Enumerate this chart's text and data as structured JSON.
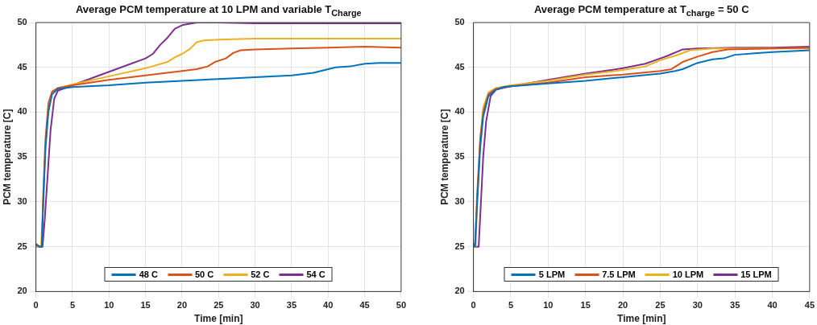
{
  "chart_data": [
    {
      "type": "line",
      "title": "Average PCM temperature at 10 LPM and variable T$_{Charge}$",
      "xlabel": "Time [min]",
      "ylabel": "PCM temperature [C]",
      "xlim": [
        0,
        50
      ],
      "xticks": [
        0,
        5,
        10,
        15,
        20,
        25,
        30,
        35,
        40,
        45,
        50
      ],
      "ylim": [
        20,
        50
      ],
      "yticks": [
        20,
        25,
        30,
        35,
        40,
        45,
        50
      ],
      "grid": true,
      "legend": "bottom",
      "series": [
        {
          "name": "48 C",
          "color": "#0072bd",
          "x": [
            0,
            0.5,
            0.8,
            1,
            1.3,
            1.7,
            2.2,
            3,
            5,
            10,
            15,
            20,
            25,
            30,
            35,
            38,
            40,
            41,
            43,
            45,
            47,
            50
          ],
          "values": [
            25.3,
            25,
            25,
            30,
            36,
            40,
            42,
            42.6,
            42.8,
            43,
            43.3,
            43.5,
            43.7,
            43.9,
            44.1,
            44.4,
            44.8,
            45,
            45.1,
            45.4,
            45.5,
            45.5
          ]
        },
        {
          "name": "50 C",
          "color": "#d95319",
          "x": [
            0,
            0.5,
            0.8,
            1,
            1.3,
            1.7,
            2.2,
            3,
            5,
            10,
            15,
            20,
            22,
            23.5,
            24.5,
            26,
            27,
            28,
            30,
            35,
            40,
            45,
            50
          ],
          "values": [
            25.2,
            25,
            25,
            31,
            37,
            41,
            42.3,
            42.7,
            43,
            43.6,
            44.1,
            44.6,
            44.8,
            45.1,
            45.6,
            46,
            46.6,
            46.9,
            47,
            47.1,
            47.2,
            47.3,
            47.2
          ]
        },
        {
          "name": "52 C",
          "color": "#edb120",
          "x": [
            0,
            0.7,
            1,
            1.3,
            1.7,
            2.2,
            3,
            5,
            10,
            15,
            18,
            19,
            20,
            21,
            22,
            23,
            25,
            30,
            40,
            50
          ],
          "values": [
            25,
            25,
            30,
            36,
            40.5,
            42.2,
            42.7,
            43.1,
            44,
            44.9,
            45.6,
            46.1,
            46.5,
            47,
            47.8,
            48,
            48.1,
            48.2,
            48.2,
            48.2
          ]
        },
        {
          "name": "54 C",
          "color": "#7e2f8e",
          "x": [
            0,
            0.9,
            1.2,
            1.6,
            2,
            2.5,
            3,
            5,
            10,
            13,
            15,
            16,
            17,
            18,
            19,
            20,
            22,
            25,
            30,
            40,
            50
          ],
          "values": [
            25,
            25,
            28,
            33,
            38,
            41.5,
            42.4,
            43,
            44.5,
            45.4,
            46,
            46.5,
            47.5,
            48.3,
            49.3,
            49.7,
            50,
            50,
            49.9,
            49.9,
            49.9
          ]
        }
      ]
    },
    {
      "type": "line",
      "title": "Average PCM temperature at T$_{charge}$ = 50 C",
      "xlabel": "Time [min]",
      "ylabel": "PCM temperature [C]",
      "xlim": [
        0,
        45
      ],
      "xticks": [
        0,
        5,
        10,
        15,
        20,
        25,
        30,
        35,
        40,
        45
      ],
      "ylim": [
        20,
        50
      ],
      "yticks": [
        20,
        25,
        30,
        35,
        40,
        45,
        50
      ],
      "grid": true,
      "legend": "bottom",
      "series": [
        {
          "name": "5 LPM",
          "color": "#0072bd",
          "x": [
            0,
            0.2,
            0.5,
            0.9,
            1.3,
            2,
            3,
            4,
            5,
            10,
            15,
            20,
            25,
            27,
            28,
            30,
            32,
            33.5,
            35,
            38,
            40,
            45
          ],
          "values": [
            25.3,
            25,
            30,
            36,
            39.5,
            41.8,
            42.5,
            42.8,
            42.9,
            43.2,
            43.5,
            43.9,
            44.3,
            44.6,
            44.8,
            45.5,
            45.9,
            46,
            46.4,
            46.6,
            46.7,
            46.9
          ]
        },
        {
          "name": "7.5 LPM",
          "color": "#d95319",
          "x": [
            0,
            0.2,
            0.5,
            0.9,
            1.3,
            2,
            3,
            5,
            10,
            15,
            20,
            25,
            26.5,
            28,
            30,
            32,
            34,
            40,
            45
          ],
          "values": [
            25.2,
            25,
            31,
            37,
            40,
            42,
            42.6,
            42.9,
            43.3,
            43.9,
            44.2,
            44.6,
            44.8,
            45.6,
            46.2,
            46.7,
            47,
            47.1,
            47.2
          ]
        },
        {
          "name": "10 LPM",
          "color": "#edb120",
          "x": [
            0,
            0.3,
            0.5,
            0.9,
            1.3,
            2,
            3,
            5,
            10,
            15,
            20,
            23,
            25,
            27,
            29,
            32,
            40,
            45
          ],
          "values": [
            25,
            25,
            30,
            37,
            40.5,
            42.2,
            42.7,
            43,
            43.5,
            44.2,
            44.7,
            45.1,
            45.8,
            46.3,
            46.9,
            47.1,
            47.1,
            47.1
          ]
        },
        {
          "name": "15 LPM",
          "color": "#7e2f8e",
          "x": [
            0,
            0.7,
            1,
            1.3,
            1.7,
            2.3,
            3,
            5,
            10,
            15,
            20,
            23,
            25,
            26,
            28,
            30,
            35,
            40,
            45
          ],
          "values": [
            25,
            25,
            30,
            35,
            39,
            41.8,
            42.5,
            42.9,
            43.6,
            44.3,
            44.9,
            45.4,
            46,
            46.3,
            47,
            47.1,
            47.2,
            47.2,
            47.3
          ]
        }
      ]
    }
  ]
}
